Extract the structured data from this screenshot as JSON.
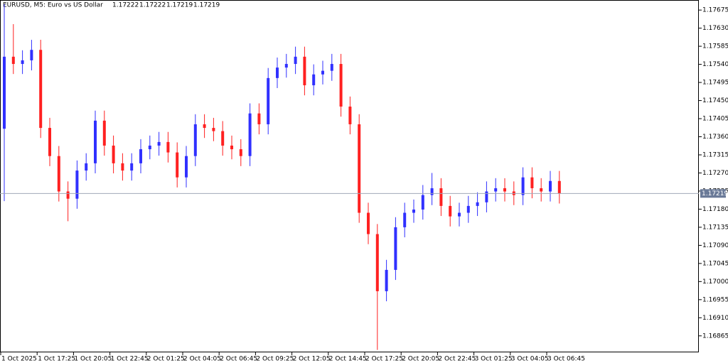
{
  "chart_data": {
    "type": "candlestick",
    "title": "EURUSD, M5:  Euro vs US Dollar",
    "header_ohlc": [
      1.17222,
      1.17222,
      1.17219,
      1.17219
    ],
    "last_price": 1.17219,
    "up_color": "#3030ff",
    "down_color": "#ff2020",
    "categories": [
      "1 Oct 2025",
      null,
      null,
      null,
      "1 Oct 17:25",
      null,
      null,
      null,
      "1 Oct 20:05",
      null,
      null,
      null,
      "1 Oct 22:45",
      null,
      null,
      null,
      "2 Oct 01:25",
      null,
      null,
      null,
      "2 Oct 04:05",
      null,
      null,
      null,
      "2 Oct 06:45",
      null,
      null,
      null,
      "2 Oct 09:25",
      null,
      null,
      null,
      "2 Oct 12:05",
      null,
      null,
      null,
      "2 Oct 14:45",
      null,
      null,
      null,
      "2 Oct 17:25",
      null,
      null,
      null,
      "2 Oct 20:05",
      null,
      null,
      null,
      "2 Oct 22:45",
      null,
      null,
      null,
      "3 Oct 01:25",
      null,
      null,
      null,
      "3 Oct 04:05",
      null,
      null,
      null,
      "3 Oct 06:45",
      null
    ],
    "open": [
      1.1738,
      1.17559,
      1.17541,
      1.1755,
      1.17576,
      1.17382,
      1.17312,
      1.17224,
      1.17206,
      1.17276,
      1.17294,
      1.174,
      1.17338,
      1.17294,
      1.17276,
      1.17294,
      1.17329,
      1.17338,
      1.17347,
      1.17321,
      1.17259,
      1.17312,
      1.17391,
      1.17382,
      1.17374,
      1.17338,
      1.17329,
      1.17312,
      1.17418,
      1.17391,
      1.17506,
      1.17532,
      1.17541,
      1.17559,
      1.17488,
      1.17515,
      1.17524,
      1.17541,
      1.17435,
      1.17391,
      1.17171,
      1.17118,
      1.16976,
      1.17029,
      1.17135,
      1.17171,
      1.17179,
      1.17215,
      1.17232,
      1.17188,
      1.17162,
      1.17171,
      1.17188,
      1.17197,
      1.17224,
      1.17232,
      1.17224,
      1.17215,
      1.17259,
      1.17232,
      1.17224,
      1.1725
    ],
    "high": [
      1.1769,
      1.1764,
      1.17575,
      1.17601,
      1.17601,
      1.17407,
      1.17337,
      1.17249,
      1.17301,
      1.17319,
      1.17425,
      1.17425,
      1.17363,
      1.17319,
      1.17319,
      1.17354,
      1.17363,
      1.17372,
      1.17372,
      1.17346,
      1.17337,
      1.17416,
      1.17416,
      1.17407,
      1.17399,
      1.17363,
      1.17354,
      1.17443,
      1.17443,
      1.17531,
      1.17557,
      1.17566,
      1.17584,
      1.17584,
      1.1754,
      1.17549,
      1.17566,
      1.17566,
      1.1746,
      1.17416,
      1.17196,
      1.17143,
      1.17054,
      1.1716,
      1.17196,
      1.17204,
      1.1724,
      1.1727,
      1.17257,
      1.17213,
      1.17196,
      1.17213,
      1.17222,
      1.17249,
      1.17257,
      1.17257,
      1.17249,
      1.17284,
      1.17284,
      1.17257,
      1.17275,
      1.17275
    ],
    "low": [
      1.172,
      1.17516,
      1.17516,
      1.17525,
      1.17357,
      1.17287,
      1.17199,
      1.1715,
      1.17181,
      1.17251,
      1.17269,
      1.17313,
      1.17269,
      1.17251,
      1.17251,
      1.17269,
      1.17304,
      1.17313,
      1.17296,
      1.17234,
      1.17234,
      1.17287,
      1.17357,
      1.17349,
      1.17313,
      1.17304,
      1.17287,
      1.17287,
      1.17366,
      1.17366,
      1.17481,
      1.17507,
      1.17516,
      1.17463,
      1.17463,
      1.1749,
      1.17499,
      1.1741,
      1.17366,
      1.17146,
      1.17093,
      1.1683,
      1.16951,
      1.17004,
      1.1711,
      1.17146,
      1.17154,
      1.1719,
      1.17163,
      1.17137,
      1.17137,
      1.17146,
      1.17163,
      1.17172,
      1.17199,
      1.17199,
      1.1719,
      1.1719,
      1.17207,
      1.17199,
      1.17199,
      1.17194
    ],
    "close": [
      1.17559,
      1.17541,
      1.1755,
      1.17576,
      1.17382,
      1.17312,
      1.17224,
      1.17206,
      1.17276,
      1.17294,
      1.174,
      1.17338,
      1.17294,
      1.17276,
      1.17294,
      1.17329,
      1.17338,
      1.17347,
      1.17321,
      1.17259,
      1.17312,
      1.17391,
      1.17382,
      1.17374,
      1.17338,
      1.17329,
      1.17312,
      1.17418,
      1.17391,
      1.17506,
      1.17532,
      1.17541,
      1.17559,
      1.17488,
      1.17515,
      1.17524,
      1.17541,
      1.17435,
      1.17391,
      1.17171,
      1.17118,
      1.16976,
      1.17029,
      1.17135,
      1.17171,
      1.17179,
      1.17215,
      1.17232,
      1.17188,
      1.17162,
      1.17171,
      1.17188,
      1.17197,
      1.17224,
      1.17232,
      1.17224,
      1.17215,
      1.17259,
      1.17232,
      1.17224,
      1.1725,
      1.17219
    ],
    "ylim": [
      1.16824,
      1.177
    ],
    "yticks": [
      1.16865,
      {
        "value": 1.1691,
        "label": "1.16910"
      },
      1.16955,
      {
        "value": 1.17,
        "label": "1.17000"
      },
      1.17045,
      {
        "value": 1.1709,
        "label": "1.17090"
      },
      1.17135,
      {
        "value": 1.1718,
        "label": "1.17180"
      },
      1.17225,
      {
        "value": 1.1727,
        "label": "1.17270"
      },
      1.17315,
      {
        "value": 1.1736,
        "label": "1.17360"
      },
      1.17405,
      {
        "value": 1.1745,
        "label": "1.17450"
      },
      1.17495,
      {
        "value": 1.1754,
        "label": "1.17540"
      },
      1.17585,
      {
        "value": 1.1763,
        "label": "1.17630"
      },
      1.17675
    ]
  }
}
